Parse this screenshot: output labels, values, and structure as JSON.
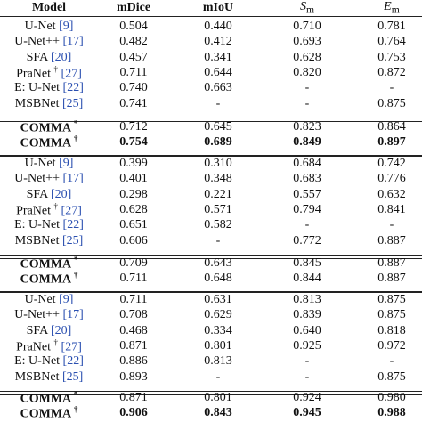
{
  "table": {
    "header": [
      {
        "text": "Model"
      },
      {
        "text": "mDice"
      },
      {
        "text": "mIoU"
      },
      {
        "text": "S",
        "sub": "m"
      },
      {
        "text": "E",
        "sub": "m"
      }
    ],
    "groups": [
      {
        "baselines": [
          {
            "model": "U-Net",
            "ref": "[9]",
            "values": [
              "0.504",
              "0.440",
              "0.710",
              "0.781"
            ]
          },
          {
            "model": "U-Net++",
            "ref": "[17]",
            "values": [
              "0.482",
              "0.412",
              "0.693",
              "0.764"
            ]
          },
          {
            "model": "SFA",
            "ref": "[20]",
            "values": [
              "0.457",
              "0.341",
              "0.628",
              "0.753"
            ]
          },
          {
            "model": "PraNet",
            "mark": "†",
            "ref": "[27]",
            "values": [
              "0.711",
              "0.644",
              "0.820",
              "0.872"
            ]
          },
          {
            "model": "E: U-Net",
            "ref": "[22]",
            "values": [
              "0.740",
              "0.663",
              "-",
              "-"
            ]
          },
          {
            "model": "MSBNet",
            "ref": "[25]",
            "values": [
              "0.741",
              "-",
              "-",
              "0.875"
            ]
          }
        ],
        "ours": [
          {
            "model": "COMMA",
            "mark": "*",
            "values": [
              "0.712",
              "0.645",
              "0.823",
              "0.864"
            ],
            "bold": false
          },
          {
            "model": "COMMA",
            "mark": "†",
            "values": [
              "0.754",
              "0.689",
              "0.849",
              "0.897"
            ],
            "bold": true
          }
        ]
      },
      {
        "baselines": [
          {
            "model": "U-Net",
            "ref": "[9]",
            "values": [
              "0.399",
              "0.310",
              "0.684",
              "0.742"
            ]
          },
          {
            "model": "U-Net++",
            "ref": "[17]",
            "values": [
              "0.401",
              "0.348",
              "0.683",
              "0.776"
            ]
          },
          {
            "model": "SFA",
            "ref": "[20]",
            "values": [
              "0.298",
              "0.221",
              "0.557",
              "0.632"
            ]
          },
          {
            "model": "PraNet",
            "mark": "†",
            "ref": "[27]",
            "values": [
              "0.628",
              "0.571",
              "0.794",
              "0.841"
            ]
          },
          {
            "model": "E: U-Net",
            "ref": "[22]",
            "values": [
              "0.651",
              "0.582",
              "-",
              "-"
            ]
          },
          {
            "model": "MSBNet",
            "ref": "[25]",
            "values": [
              "0.606",
              "-",
              "0.772",
              "0.887"
            ]
          }
        ],
        "ours": [
          {
            "model": "COMMA",
            "mark": "*",
            "values": [
              "0.709",
              "0.643",
              "0.845",
              "0.887"
            ],
            "bold": false
          },
          {
            "model": "COMMA",
            "mark": "†",
            "values": [
              "0.711",
              "0.648",
              "0.844",
              "0.887"
            ],
            "bold": false
          }
        ]
      },
      {
        "baselines": [
          {
            "model": "U-Net",
            "ref": "[9]",
            "values": [
              "0.711",
              "0.631",
              "0.813",
              "0.875"
            ]
          },
          {
            "model": "U-Net++",
            "ref": "[17]",
            "values": [
              "0.708",
              "0.629",
              "0.839",
              "0.875"
            ]
          },
          {
            "model": "SFA",
            "ref": "[20]",
            "values": [
              "0.468",
              "0.334",
              "0.640",
              "0.818"
            ]
          },
          {
            "model": "PraNet",
            "mark": "†",
            "ref": "[27]",
            "values": [
              "0.871",
              "0.801",
              "0.925",
              "0.972"
            ]
          },
          {
            "model": "E: U-Net",
            "ref": "[22]",
            "values": [
              "0.886",
              "0.813",
              "-",
              "-"
            ]
          },
          {
            "model": "MSBNet",
            "ref": "[25]",
            "values": [
              "0.893",
              "-",
              "-",
              "0.875"
            ]
          }
        ],
        "ours": [
          {
            "model": "COMMA",
            "mark": "*",
            "values": [
              "0.871",
              "0.801",
              "0.924",
              "0.980"
            ],
            "bold": false
          },
          {
            "model": "COMMA",
            "mark": "†",
            "values": [
              "0.906",
              "0.843",
              "0.945",
              "0.988"
            ],
            "bold": true
          }
        ]
      }
    ]
  }
}
